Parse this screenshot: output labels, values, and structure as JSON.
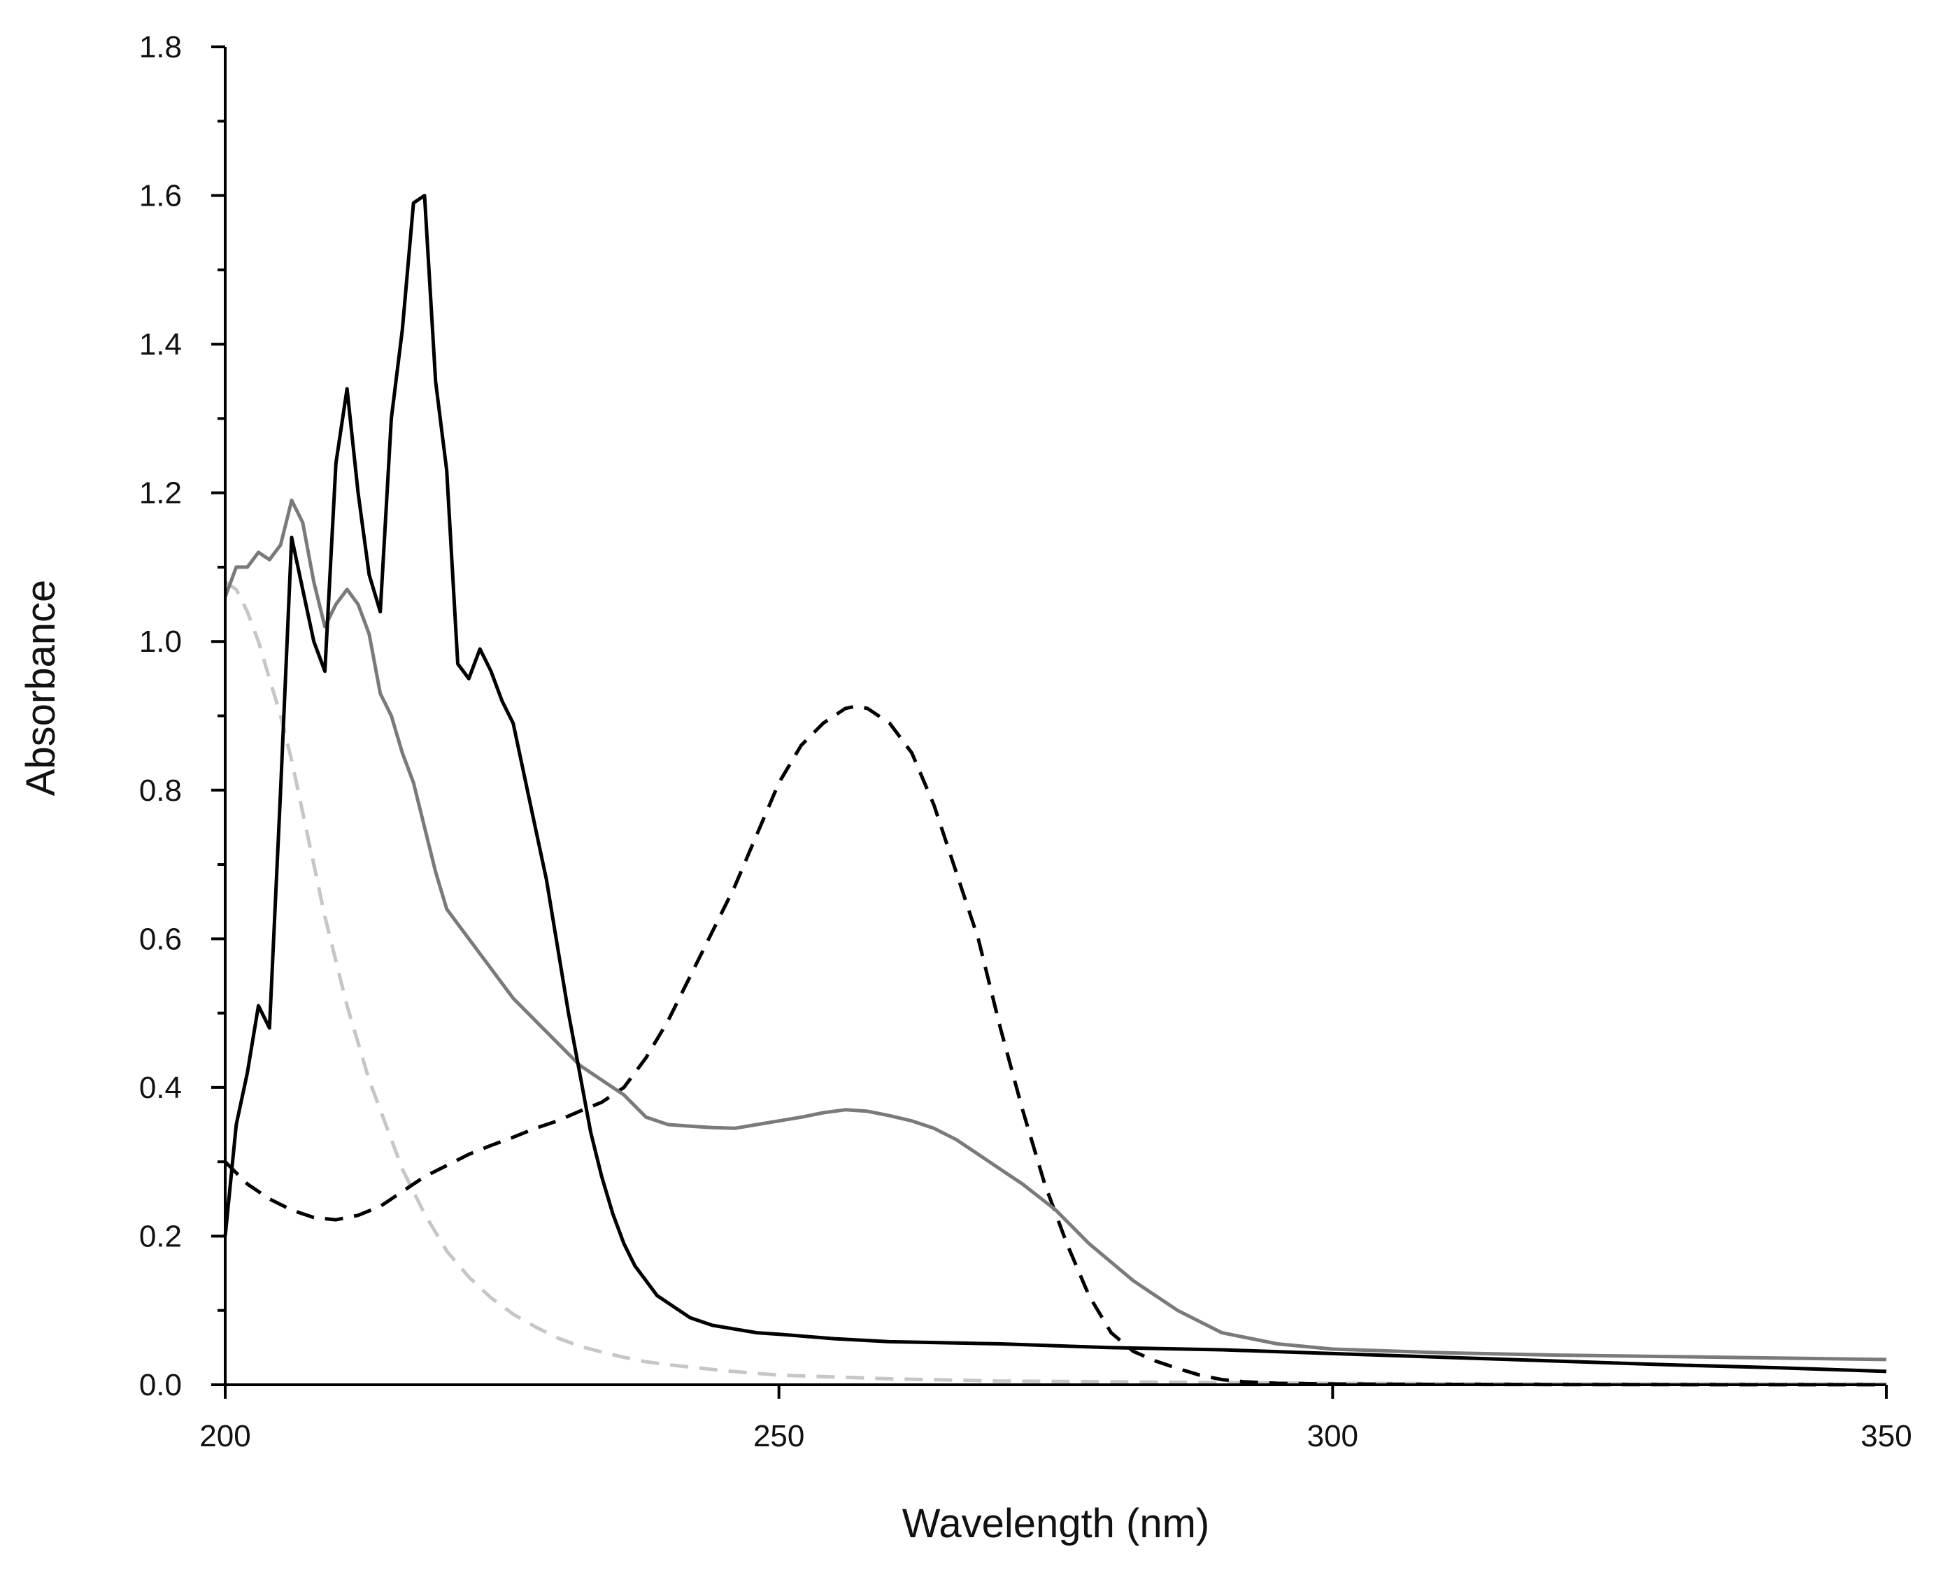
{
  "chart_data": {
    "type": "line",
    "title": "",
    "xlabel": "Wavelength (nm)",
    "ylabel": "Absorbance",
    "xlim": [
      200,
      350
    ],
    "ylim": [
      0,
      1.8
    ],
    "grid": false,
    "legend": "none",
    "x_ticks": [
      200,
      250,
      300,
      350
    ],
    "x_tick_labels": [
      "200",
      "250",
      "300",
      "350"
    ],
    "y_ticks": [
      0,
      0.2,
      0.4,
      0.6,
      0.8,
      1.0,
      1.2,
      1.4,
      1.6,
      1.8
    ],
    "y_tick_labels": [
      "0.0",
      "0.2",
      "0.4",
      "0.6",
      "0.8",
      "1.0",
      "1.2",
      "1.4",
      "1.6",
      "1.8"
    ],
    "series": [
      {
        "name": "solid-black",
        "color": "#000000",
        "style": "solid",
        "x": [
          200,
          201,
          202,
          203,
          204,
          205,
          206,
          207,
          208,
          209,
          210,
          211,
          212,
          213,
          214,
          215,
          216,
          217,
          218,
          219,
          220,
          221,
          222,
          223,
          224,
          225,
          226,
          227,
          228,
          229,
          230,
          231,
          232,
          233,
          234,
          235,
          236,
          237,
          238,
          239,
          240,
          242,
          244,
          246,
          248,
          250,
          255,
          260,
          270,
          280,
          290,
          300,
          310,
          320,
          330,
          340,
          350
        ],
        "y": [
          0.2,
          0.35,
          0.42,
          0.51,
          0.48,
          0.8,
          1.14,
          1.07,
          1.0,
          0.96,
          1.24,
          1.34,
          1.2,
          1.09,
          1.04,
          1.3,
          1.42,
          1.59,
          1.6,
          1.35,
          1.23,
          0.97,
          0.95,
          0.99,
          0.96,
          0.92,
          0.89,
          0.82,
          0.75,
          0.68,
          0.59,
          0.5,
          0.42,
          0.34,
          0.28,
          0.23,
          0.19,
          0.16,
          0.14,
          0.12,
          0.11,
          0.09,
          0.08,
          0.075,
          0.07,
          0.068,
          0.062,
          0.058,
          0.055,
          0.05,
          0.047,
          0.042,
          0.037,
          0.032,
          0.027,
          0.023,
          0.018
        ]
      },
      {
        "name": "solid-gray",
        "color": "#7a7a7a",
        "style": "solid",
        "x": [
          200,
          201,
          202,
          203,
          204,
          205,
          206,
          207,
          208,
          209,
          210,
          211,
          212,
          213,
          214,
          215,
          216,
          217,
          218,
          219,
          220,
          221,
          222,
          223,
          224,
          226,
          228,
          230,
          232,
          234,
          236,
          238,
          240,
          242,
          244,
          246,
          248,
          250,
          252,
          254,
          256,
          258,
          260,
          262,
          264,
          266,
          268,
          270,
          272,
          275,
          278,
          282,
          286,
          290,
          295,
          300,
          310,
          320,
          330,
          340,
          350
        ],
        "y": [
          1.06,
          1.1,
          1.1,
          1.12,
          1.11,
          1.13,
          1.19,
          1.16,
          1.08,
          1.02,
          1.05,
          1.07,
          1.05,
          1.01,
          0.93,
          0.9,
          0.85,
          0.81,
          0.75,
          0.69,
          0.64,
          0.62,
          0.6,
          0.58,
          0.56,
          0.52,
          0.49,
          0.46,
          0.43,
          0.41,
          0.39,
          0.36,
          0.35,
          0.348,
          0.346,
          0.345,
          0.35,
          0.355,
          0.36,
          0.366,
          0.37,
          0.368,
          0.362,
          0.355,
          0.345,
          0.33,
          0.31,
          0.29,
          0.27,
          0.235,
          0.19,
          0.14,
          0.1,
          0.07,
          0.055,
          0.048,
          0.043,
          0.04,
          0.038,
          0.036,
          0.034
        ]
      },
      {
        "name": "dashed-black",
        "color": "#000000",
        "style": "dashed",
        "x": [
          200,
          202,
          204,
          206,
          208,
          210,
          212,
          214,
          216,
          218,
          220,
          222,
          224,
          226,
          228,
          230,
          232,
          234,
          236,
          238,
          240,
          242,
          244,
          246,
          248,
          250,
          252,
          254,
          256,
          257,
          258,
          260,
          262,
          264,
          266,
          268,
          270,
          272,
          274,
          276,
          278,
          280,
          282,
          284,
          286,
          288,
          290,
          292,
          295,
          300,
          310,
          320,
          330,
          340,
          350
        ],
        "y": [
          0.3,
          0.27,
          0.25,
          0.235,
          0.225,
          0.222,
          0.228,
          0.24,
          0.26,
          0.28,
          0.295,
          0.31,
          0.322,
          0.333,
          0.345,
          0.355,
          0.368,
          0.38,
          0.4,
          0.44,
          0.49,
          0.55,
          0.61,
          0.67,
          0.74,
          0.81,
          0.86,
          0.89,
          0.91,
          0.913,
          0.91,
          0.89,
          0.85,
          0.78,
          0.69,
          0.6,
          0.48,
          0.37,
          0.27,
          0.19,
          0.12,
          0.07,
          0.045,
          0.032,
          0.022,
          0.013,
          0.007,
          0.004,
          0.002,
          0.001,
          0.0005,
          0.0003,
          0.0002,
          0.0001,
          0.0001
        ]
      },
      {
        "name": "dashed-gray",
        "color": "#c6c6c6",
        "style": "dashed",
        "x": [
          200,
          201,
          202,
          203,
          204,
          205,
          206,
          207,
          208,
          209,
          210,
          211,
          212,
          213,
          214,
          215,
          216,
          217,
          218,
          219,
          220,
          222,
          224,
          226,
          228,
          230,
          232,
          234,
          236,
          238,
          240,
          245,
          250,
          260,
          270,
          280,
          290,
          300,
          325,
          350
        ],
        "y": [
          1.08,
          1.07,
          1.04,
          1.0,
          0.95,
          0.9,
          0.84,
          0.77,
          0.7,
          0.63,
          0.57,
          0.51,
          0.46,
          0.41,
          0.37,
          0.33,
          0.29,
          0.26,
          0.23,
          0.205,
          0.18,
          0.145,
          0.117,
          0.095,
          0.078,
          0.063,
          0.052,
          0.044,
          0.037,
          0.031,
          0.027,
          0.019,
          0.013,
          0.008,
          0.005,
          0.004,
          0.003,
          0.002,
          0.001,
          0.001
        ]
      }
    ]
  }
}
